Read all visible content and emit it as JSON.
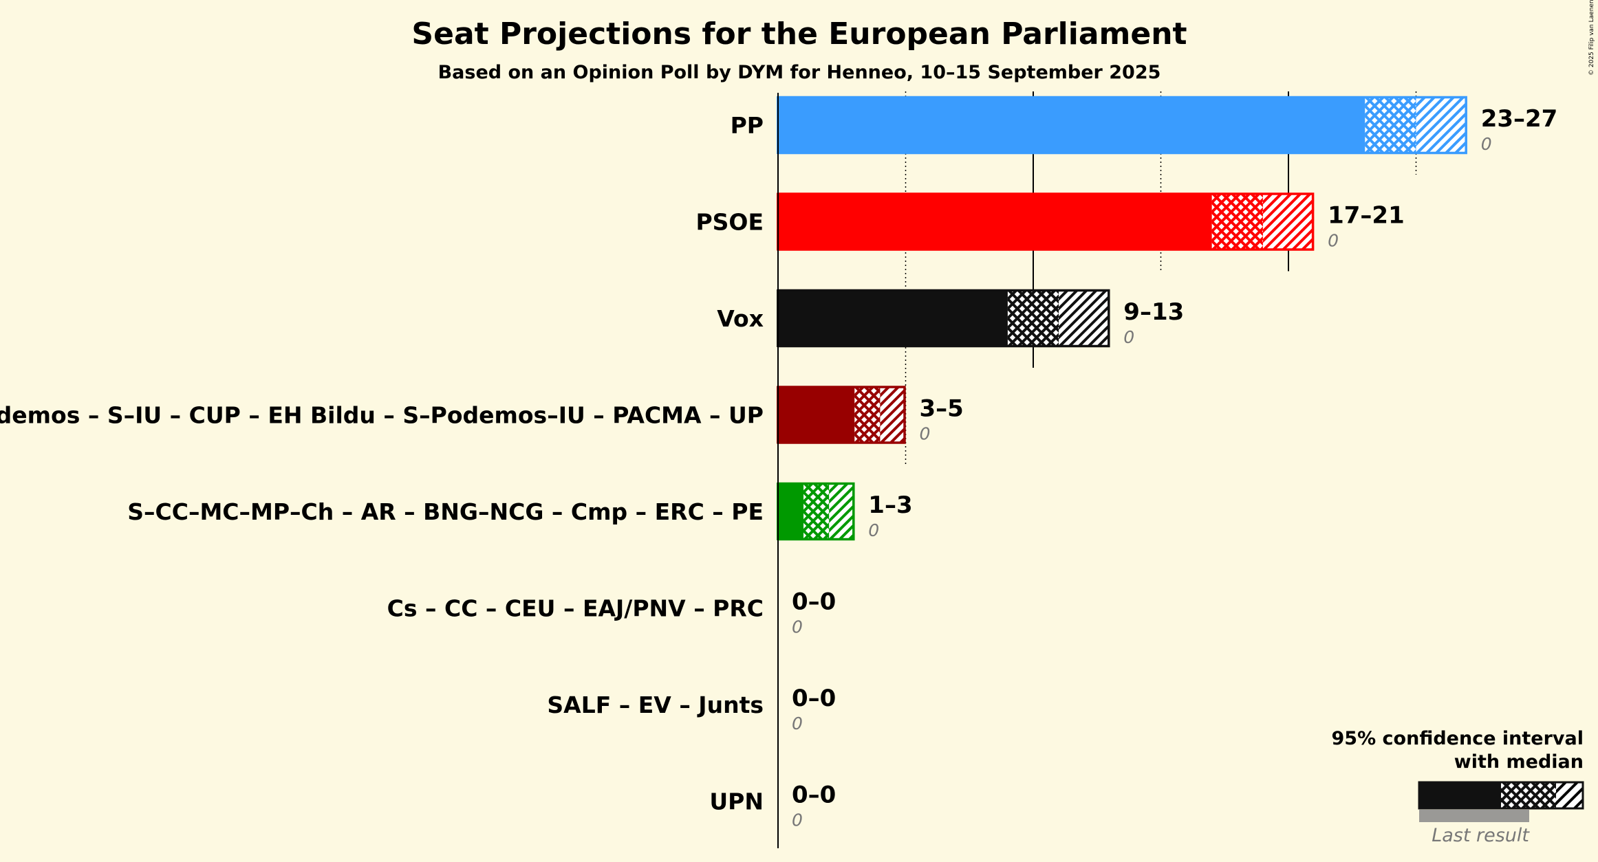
{
  "chart_data": {
    "type": "bar",
    "orientation": "horizontal",
    "title": "Seat Projections for the European Parliament",
    "subtitle": "Based on an Opinion Poll by DYM for Henneo, 10–15 September 2025",
    "copyright": "© 2025 Filip van Laenen",
    "xlim": [
      0,
      30
    ],
    "gridlines": [
      5,
      10,
      15,
      20,
      25
    ],
    "categories": [
      "PP",
      "PSOE",
      "Vox",
      "Podemos – S–IU – CUP – EH Bildu – S–Podemos–IU – PACMA – UP",
      "S–CC–MC–MP–Ch – AR – BNG–NCG – Cmp – ERC – PE",
      "Cs – CC – CEU – EAJ/PNV – PRC",
      "SALF – EV – Junts",
      "UPN"
    ],
    "series": [
      {
        "name": "ci_low",
        "values": [
          23,
          17,
          9,
          3,
          1,
          0,
          0,
          0
        ]
      },
      {
        "name": "median",
        "values": [
          25,
          19,
          11,
          4,
          2,
          0,
          0,
          0
        ]
      },
      {
        "name": "ci_high",
        "values": [
          27,
          21,
          13,
          5,
          3,
          0,
          0,
          0
        ]
      },
      {
        "name": "Last result",
        "values": [
          0,
          0,
          0,
          0,
          0,
          0,
          0,
          0
        ]
      }
    ],
    "range_labels": [
      "23–27",
      "17–21",
      "9–13",
      "3–5",
      "1–3",
      "0–0",
      "0–0",
      "0–0"
    ],
    "last_labels": [
      "0",
      "0",
      "0",
      "0",
      "0",
      "0",
      "0",
      "0"
    ],
    "colors": [
      "#3a9cfe",
      "#ff0000",
      "#111111",
      "#980000",
      "#009900",
      "#f7a51a",
      "#6b8e23",
      "#1e4d8c"
    ],
    "legend": {
      "position": "bottom-right",
      "line1": "95% confidence interval",
      "line2": "with median",
      "last_result": "Last result"
    }
  }
}
